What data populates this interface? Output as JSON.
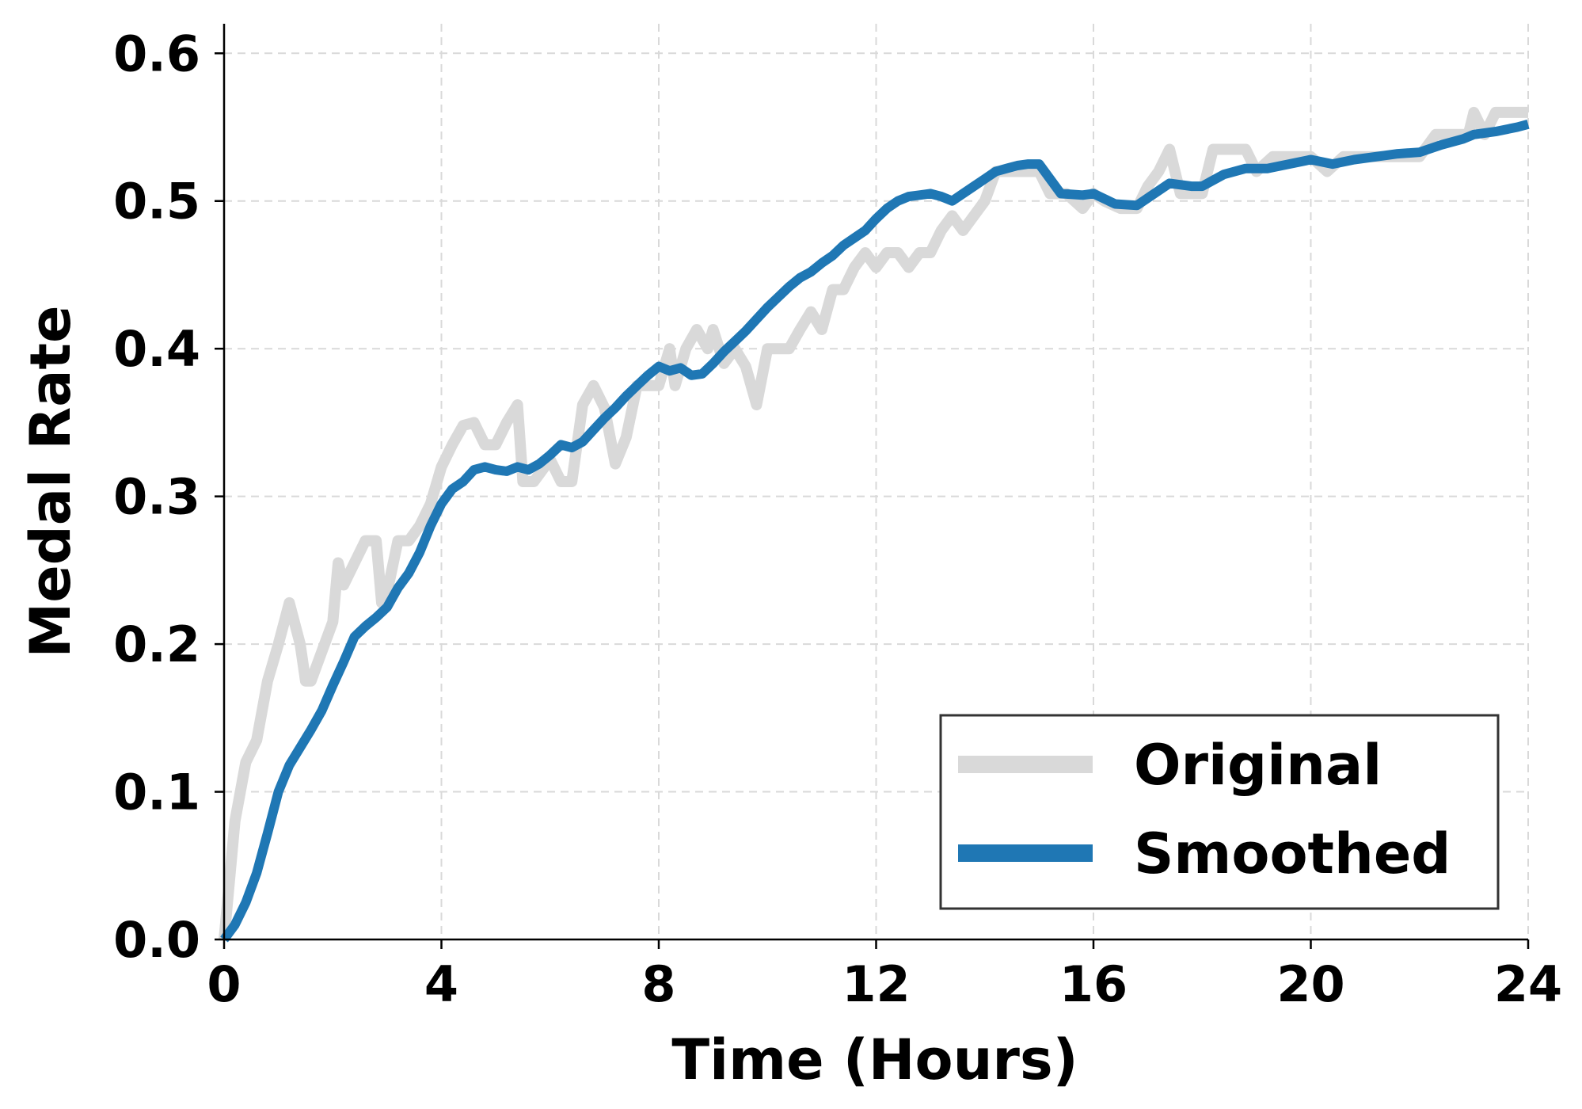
{
  "chart_data": {
    "type": "line",
    "title": "",
    "xlabel": "Time (Hours)",
    "ylabel": "Medal Rate",
    "xlim": [
      0,
      24
    ],
    "ylim": [
      0,
      0.62
    ],
    "xticks": [
      0,
      4,
      8,
      12,
      16,
      20,
      24
    ],
    "xtick_labels": [
      "0",
      "4",
      "8",
      "12",
      "16",
      "20",
      "24"
    ],
    "yticks": [
      0.0,
      0.1,
      0.2,
      0.3,
      0.4,
      0.5,
      0.6
    ],
    "ytick_labels": [
      "0.0",
      "0.1",
      "0.2",
      "0.3",
      "0.4",
      "0.5",
      "0.6"
    ],
    "grid": true,
    "legend_position": "lower-right",
    "series": [
      {
        "name": "Original",
        "color": "#d9d9d9",
        "x": [
          0,
          0.2,
          0.4,
          0.6,
          0.8,
          1.0,
          1.2,
          1.4,
          1.5,
          1.6,
          1.8,
          2.0,
          2.1,
          2.2,
          2.4,
          2.6,
          2.8,
          2.9,
          3.0,
          3.2,
          3.4,
          3.6,
          3.8,
          4.0,
          4.2,
          4.4,
          4.6,
          4.8,
          5.0,
          5.2,
          5.4,
          5.5,
          5.7,
          6.0,
          6.2,
          6.4,
          6.6,
          6.8,
          7.0,
          7.2,
          7.4,
          7.6,
          7.8,
          8.0,
          8.2,
          8.3,
          8.5,
          8.7,
          8.9,
          9.0,
          9.2,
          9.4,
          9.6,
          9.8,
          10.0,
          10.2,
          10.4,
          10.6,
          10.8,
          11.0,
          11.2,
          11.4,
          11.6,
          11.8,
          12.0,
          12.2,
          12.4,
          12.6,
          12.8,
          13.0,
          13.2,
          13.4,
          13.6,
          13.8,
          14.0,
          14.2,
          14.5,
          14.8,
          15.0,
          15.2,
          15.5,
          15.8,
          16.0,
          16.2,
          16.5,
          16.8,
          17.0,
          17.2,
          17.4,
          17.6,
          17.8,
          18.0,
          18.2,
          18.5,
          18.8,
          19.0,
          19.3,
          19.6,
          20.0,
          20.3,
          20.6,
          21.0,
          21.5,
          22.0,
          22.3,
          22.6,
          22.9,
          23.0,
          23.2,
          23.4,
          23.6,
          23.8,
          24.0
        ],
        "values": [
          0.0,
          0.08,
          0.12,
          0.135,
          0.175,
          0.2,
          0.228,
          0.2,
          0.175,
          0.175,
          0.195,
          0.215,
          0.255,
          0.24,
          0.255,
          0.27,
          0.27,
          0.228,
          0.235,
          0.27,
          0.27,
          0.28,
          0.295,
          0.32,
          0.335,
          0.348,
          0.35,
          0.335,
          0.335,
          0.35,
          0.362,
          0.31,
          0.31,
          0.325,
          0.31,
          0.31,
          0.362,
          0.375,
          0.36,
          0.322,
          0.34,
          0.375,
          0.375,
          0.375,
          0.4,
          0.375,
          0.4,
          0.413,
          0.4,
          0.413,
          0.39,
          0.4,
          0.388,
          0.362,
          0.4,
          0.4,
          0.4,
          0.413,
          0.425,
          0.413,
          0.44,
          0.44,
          0.455,
          0.465,
          0.455,
          0.465,
          0.465,
          0.455,
          0.465,
          0.465,
          0.48,
          0.49,
          0.48,
          0.49,
          0.5,
          0.52,
          0.52,
          0.52,
          0.52,
          0.505,
          0.505,
          0.495,
          0.505,
          0.5,
          0.495,
          0.495,
          0.51,
          0.52,
          0.535,
          0.505,
          0.505,
          0.505,
          0.535,
          0.535,
          0.535,
          0.52,
          0.53,
          0.53,
          0.53,
          0.52,
          0.53,
          0.53,
          0.53,
          0.53,
          0.545,
          0.545,
          0.545,
          0.56,
          0.545,
          0.56,
          0.56,
          0.56,
          0.56
        ]
      },
      {
        "name": "Smoothed",
        "color": "#1f77b4",
        "x": [
          0,
          0.2,
          0.4,
          0.6,
          0.8,
          1.0,
          1.2,
          1.4,
          1.6,
          1.8,
          2.0,
          2.2,
          2.4,
          2.6,
          2.8,
          3.0,
          3.2,
          3.4,
          3.6,
          3.8,
          4.0,
          4.2,
          4.4,
          4.6,
          4.8,
          5.0,
          5.2,
          5.4,
          5.6,
          5.8,
          6.0,
          6.2,
          6.4,
          6.6,
          6.8,
          7.0,
          7.2,
          7.4,
          7.6,
          7.8,
          8.0,
          8.2,
          8.4,
          8.6,
          8.8,
          9.0,
          9.2,
          9.4,
          9.6,
          9.8,
          10.0,
          10.2,
          10.4,
          10.6,
          10.8,
          11.0,
          11.2,
          11.4,
          11.6,
          11.8,
          12.0,
          12.2,
          12.4,
          12.6,
          12.8,
          13.0,
          13.2,
          13.4,
          13.6,
          13.8,
          14.0,
          14.2,
          14.4,
          14.6,
          14.8,
          15.0,
          15.4,
          15.8,
          16.0,
          16.4,
          16.8,
          17.0,
          17.4,
          17.8,
          18.0,
          18.4,
          18.8,
          19.2,
          19.6,
          20.0,
          20.4,
          20.8,
          21.2,
          21.6,
          22.0,
          22.4,
          22.8,
          23.0,
          23.4,
          23.8,
          24.0
        ],
        "values": [
          0.0,
          0.01,
          0.025,
          0.045,
          0.072,
          0.1,
          0.118,
          0.13,
          0.142,
          0.155,
          0.172,
          0.188,
          0.205,
          0.212,
          0.218,
          0.225,
          0.238,
          0.248,
          0.262,
          0.28,
          0.295,
          0.305,
          0.31,
          0.318,
          0.32,
          0.318,
          0.317,
          0.32,
          0.318,
          0.322,
          0.328,
          0.335,
          0.333,
          0.337,
          0.345,
          0.353,
          0.36,
          0.368,
          0.375,
          0.382,
          0.388,
          0.385,
          0.387,
          0.382,
          0.383,
          0.39,
          0.398,
          0.405,
          0.412,
          0.42,
          0.428,
          0.435,
          0.442,
          0.448,
          0.452,
          0.458,
          0.463,
          0.47,
          0.475,
          0.48,
          0.488,
          0.495,
          0.5,
          0.503,
          0.504,
          0.505,
          0.503,
          0.5,
          0.505,
          0.51,
          0.515,
          0.52,
          0.522,
          0.524,
          0.525,
          0.525,
          0.505,
          0.504,
          0.505,
          0.498,
          0.497,
          0.502,
          0.512,
          0.51,
          0.51,
          0.518,
          0.522,
          0.522,
          0.525,
          0.528,
          0.525,
          0.528,
          0.53,
          0.532,
          0.533,
          0.538,
          0.542,
          0.545,
          0.547,
          0.55,
          0.552
        ]
      }
    ]
  }
}
